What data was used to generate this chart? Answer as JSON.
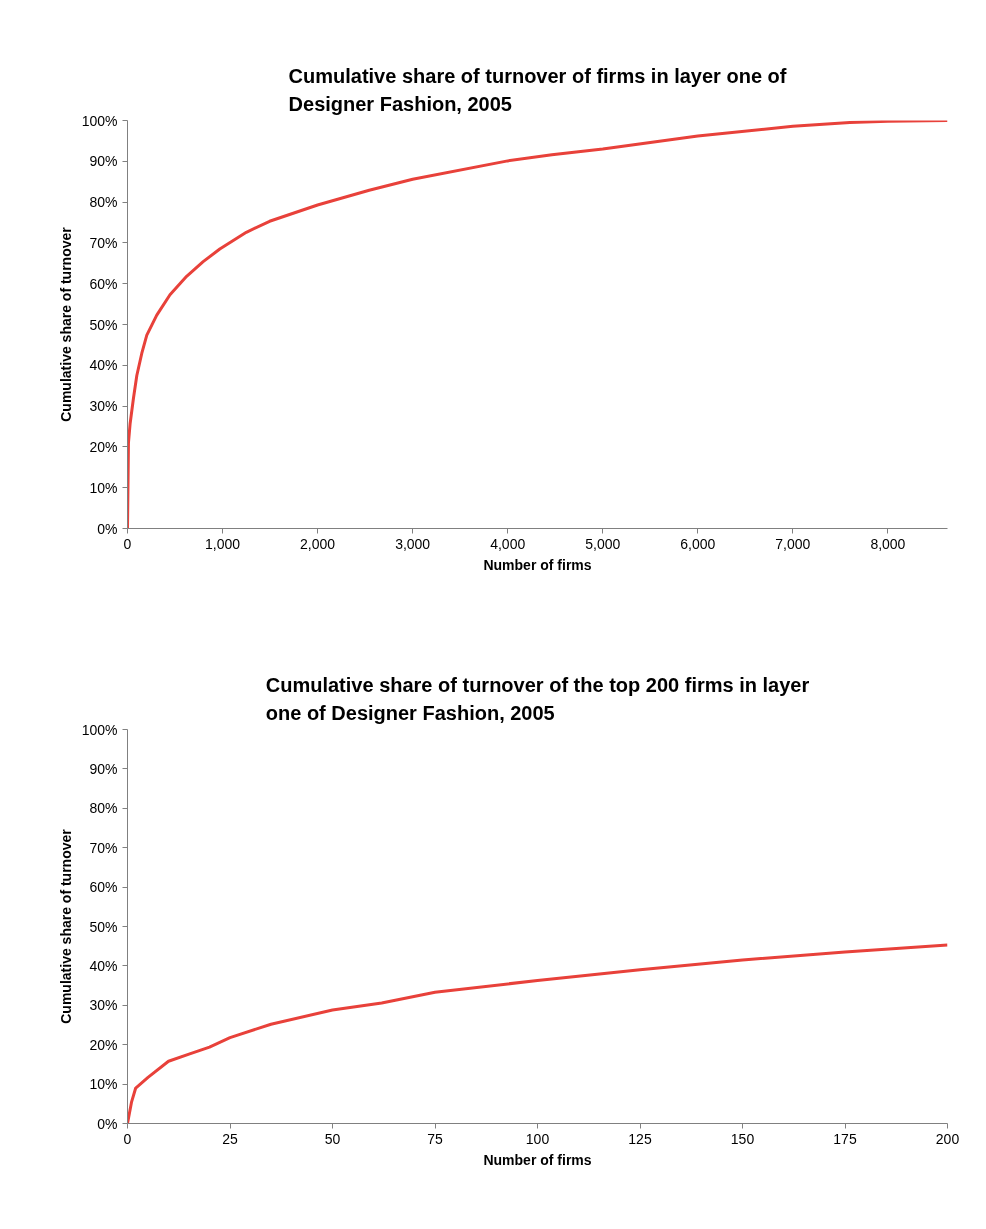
{
  "chart_data": [
    {
      "type": "line",
      "title": "Cumulative share of turnover of firms in layer one of\nDesigner Fashion, 2005",
      "xlabel": "Number of firms",
      "ylabel": "Cumulative share of turnover",
      "x": [
        0,
        10,
        28,
        63,
        98,
        150,
        203,
        308,
        447,
        622,
        796,
        971,
        1250,
        1495,
        2000,
        2543,
        3000,
        4000,
        4465,
        5000,
        6000,
        7000,
        7600,
        8000,
        8627
      ],
      "series": [
        {
          "color": "#e8413a",
          "values": [
            0,
            21,
            25.8,
            32,
            37.5,
            42.9,
            47.4,
            52.3,
            57.3,
            61.8,
            65.4,
            68.5,
            72.6,
            75.3,
            79.3,
            82.9,
            85.6,
            90.1,
            91.6,
            93,
            96.2,
            98.6,
            99.5,
            99.8,
            100
          ]
        }
      ],
      "xlim": [
        0,
        8627
      ],
      "ylim": [
        0,
        100
      ],
      "xticks": [
        0,
        {
          "value": 1000,
          "label": "1,000"
        },
        {
          "value": 2000,
          "label": "2,000"
        },
        {
          "value": 3000,
          "label": "3,000"
        },
        {
          "value": 4000,
          "label": "4,000"
        },
        {
          "value": 5000,
          "label": "5,000"
        },
        {
          "value": 6000,
          "label": "6,000"
        },
        {
          "value": 7000,
          "label": "7,000"
        },
        {
          "value": 8000,
          "label": "8,000"
        }
      ],
      "yticks": [
        {
          "value": 0,
          "label": "0%"
        },
        {
          "value": 10,
          "label": "10%"
        },
        {
          "value": 20,
          "label": "20%"
        },
        {
          "value": 30,
          "label": "30%"
        },
        {
          "value": 40,
          "label": "40%"
        },
        {
          "value": 50,
          "label": "50%"
        },
        {
          "value": 60,
          "label": "60%"
        },
        {
          "value": 70,
          "label": "70%"
        },
        {
          "value": 80,
          "label": "80%"
        },
        {
          "value": 90,
          "label": "90%"
        },
        {
          "value": 100,
          "label": "100%"
        }
      ],
      "grid": false
    },
    {
      "type": "line",
      "title": "Cumulative share of turnover of the top 200 firms in layer\none of Designer Fashion, 2005",
      "xlabel": "Number of firms",
      "ylabel": "Cumulative share of turnover",
      "x": [
        0,
        1,
        2,
        5,
        10,
        15,
        20,
        25,
        35,
        50,
        62,
        75,
        100,
        125,
        150,
        175,
        200
      ],
      "series": [
        {
          "color": "#e8413a",
          "values": [
            0,
            5.5,
            9,
            11.7,
            15.8,
            17.6,
            19.4,
            21.8,
            25.2,
            28.8,
            30.6,
            33.3,
            36.3,
            39,
            41.5,
            43.5,
            45.3
          ]
        }
      ],
      "xlim": [
        0,
        200
      ],
      "ylim": [
        0,
        100
      ],
      "xticks": [
        0,
        25,
        50,
        75,
        100,
        125,
        150,
        175,
        200
      ],
      "yticks": [
        {
          "value": 0,
          "label": "0%"
        },
        {
          "value": 10,
          "label": "10%"
        },
        {
          "value": 20,
          "label": "20%"
        },
        {
          "value": 30,
          "label": "30%"
        },
        {
          "value": 40,
          "label": "40%"
        },
        {
          "value": 50,
          "label": "50%"
        },
        {
          "value": 60,
          "label": "60%"
        },
        {
          "value": 70,
          "label": "70%"
        },
        {
          "value": 80,
          "label": "80%"
        },
        {
          "value": 90,
          "label": "90%"
        },
        {
          "value": 100,
          "label": "100%"
        }
      ],
      "grid": false
    }
  ]
}
